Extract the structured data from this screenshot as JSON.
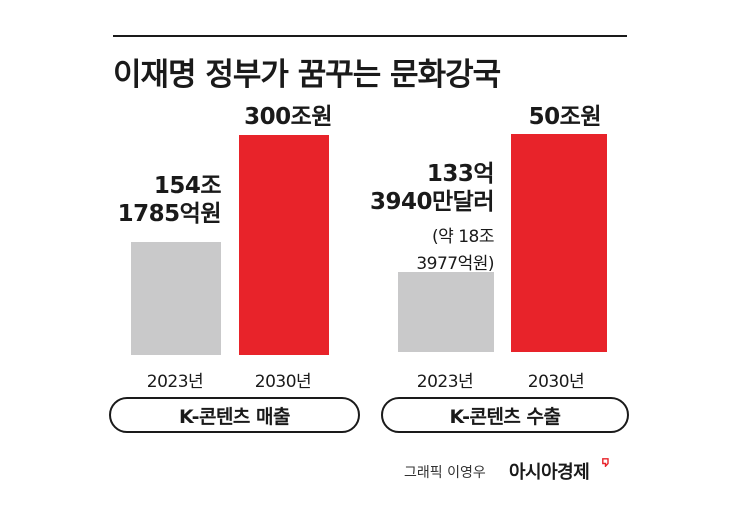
{
  "title": "이재명 정부가 꿈꾸는 문화강국",
  "chart_data": [
    {
      "type": "bar",
      "group_label": "K-콘텐츠 매출",
      "categories": [
        "2023년",
        "2030년"
      ],
      "values": [
        154.1785,
        300
      ],
      "value_labels": [
        "154조\n1785억원",
        "300조원"
      ],
      "unit": "조원",
      "colors": [
        "#c9c9ca",
        "#e8232a"
      ]
    },
    {
      "type": "bar",
      "group_label": "K-콘텐츠 수출",
      "categories": [
        "2023년",
        "2030년"
      ],
      "values": [
        18.3977,
        50
      ],
      "value_labels": [
        "133억\n3940만달러",
        "50조원"
      ],
      "value_notes": [
        "(약 18조\n3977억원)",
        ""
      ],
      "unit": "조원",
      "colors": [
        "#c9c9ca",
        "#e8232a"
      ]
    }
  ],
  "credit": "그래픽 이영우",
  "brand": "아시아경제"
}
